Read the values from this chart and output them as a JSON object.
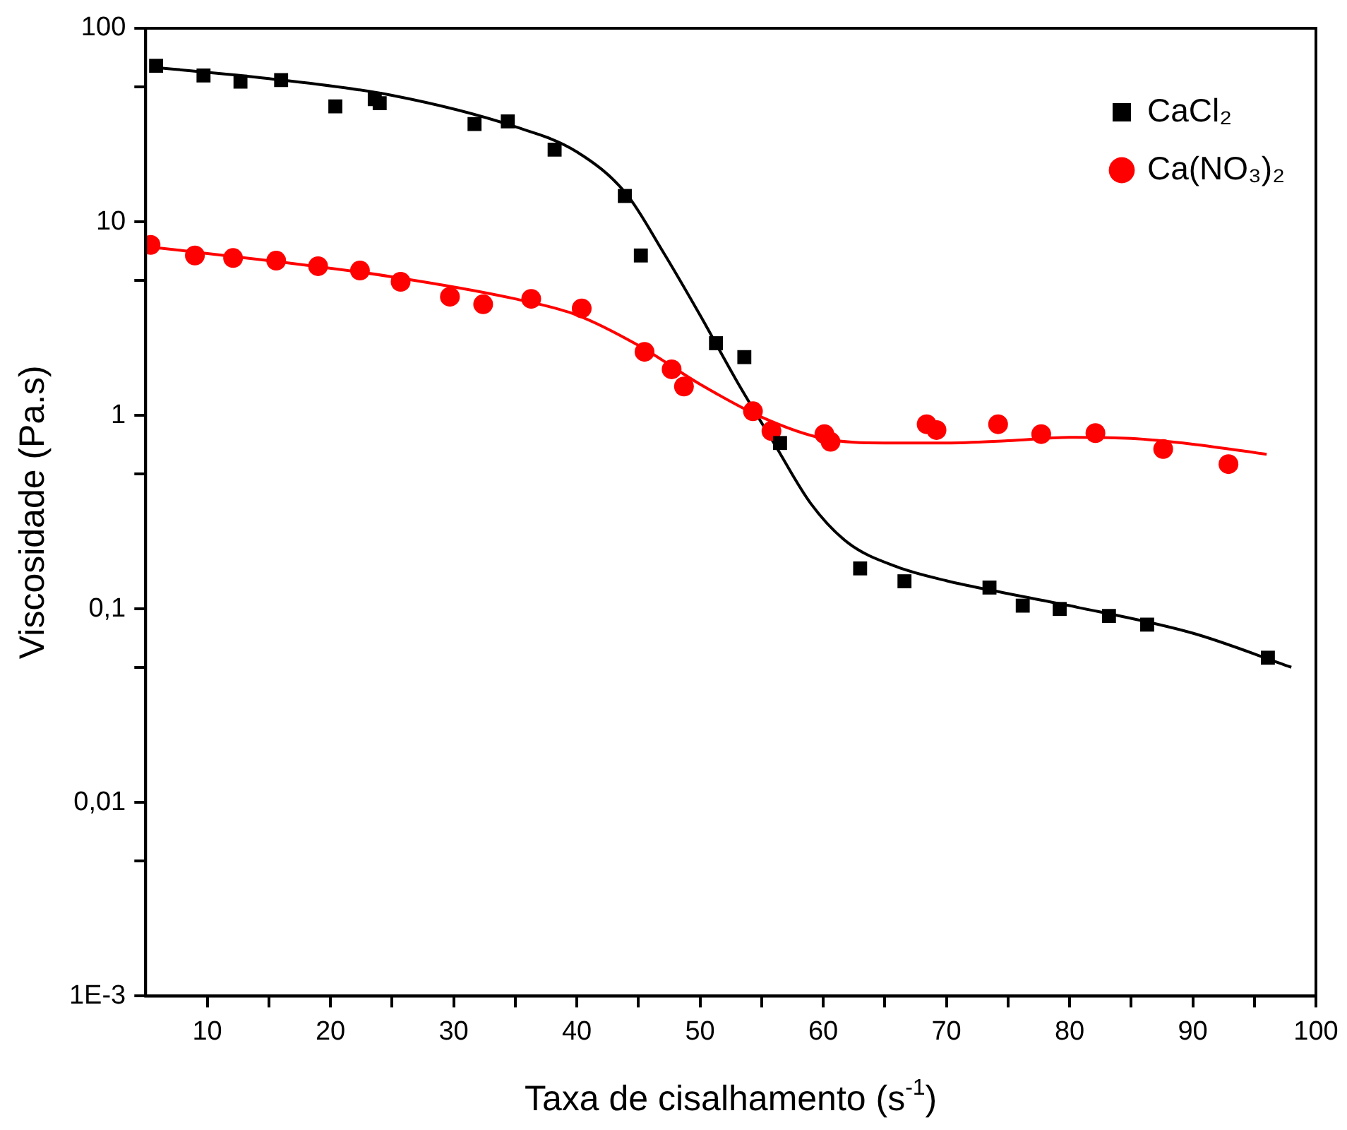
{
  "chart_data": {
    "type": "scatter",
    "xlabel": "Taxa de cisalhamento (s$^{-1}$)",
    "ylabel": "Viscosidade (Pa.s)",
    "xlim": [
      5,
      100
    ],
    "xticks": [
      10,
      {
        "value": 15,
        "label": null
      },
      20,
      {
        "value": 25,
        "label": null
      },
      30,
      {
        "value": 35,
        "label": null
      },
      40,
      {
        "value": 45,
        "label": null
      },
      50,
      {
        "value": 55,
        "label": null
      },
      60,
      {
        "value": 65,
        "label": null
      },
      70,
      {
        "value": 75,
        "label": null
      },
      80,
      {
        "value": 85,
        "label": null
      },
      90,
      {
        "value": 95,
        "label": null
      },
      100
    ],
    "ylim": [
      0.001,
      100
    ],
    "yticks": [
      {
        "value": 0.001,
        "label": "1E-3"
      },
      {
        "value": 0.005,
        "label": null
      },
      {
        "value": 0.01,
        "label": "0,01"
      },
      {
        "value": 0.05,
        "label": null
      },
      {
        "value": 0.1,
        "label": "0,1"
      },
      {
        "value": 0.5,
        "label": null
      },
      1,
      {
        "value": 5,
        "label": null
      },
      10,
      {
        "value": 50,
        "label": null
      },
      100
    ],
    "log": "y",
    "grid": false,
    "legend": "top right",
    "series": [
      {
        "name": "CaCl₂",
        "type": "scatter",
        "marker": "square",
        "color": "#000000",
        "x": [
          5.85,
          9.7,
          12.7,
          16.0,
          20.4,
          23.6,
          24.0,
          31.7,
          34.4,
          38.2,
          43.9,
          45.2,
          51.3,
          53.6,
          56.5,
          63.0,
          66.6,
          73.5,
          76.2,
          79.2,
          83.2,
          86.3,
          96.1
        ],
        "values": [
          64,
          57,
          53,
          54,
          39.5,
          43,
          41,
          32,
          33,
          23.6,
          13.6,
          6.7,
          2.36,
          2.0,
          0.72,
          0.162,
          0.139,
          0.129,
          0.104,
          0.1,
          0.092,
          0.083,
          0.056
        ]
      },
      {
        "name": "Ca(NO₃)₂",
        "type": "scatter",
        "marker": "circle",
        "color": "#ff0000",
        "x": [
          5.4,
          9.0,
          12.1,
          15.6,
          19.0,
          22.4,
          25.7,
          29.7,
          32.4,
          36.3,
          40.4,
          45.5,
          47.7,
          48.7,
          54.3,
          55.8,
          60.1,
          60.6,
          68.4,
          69.2,
          74.2,
          77.7,
          82.1,
          87.6,
          92.9
        ],
        "values": [
          7.6,
          6.7,
          6.5,
          6.3,
          5.9,
          5.6,
          4.9,
          4.1,
          3.75,
          4.0,
          3.57,
          2.13,
          1.73,
          1.41,
          1.05,
          0.83,
          0.8,
          0.73,
          0.9,
          0.84,
          0.9,
          0.8,
          0.81,
          0.67,
          0.56
        ]
      },
      {
        "type": "line",
        "color": "#000000",
        "x": [
          5.5,
          15,
          25,
          35,
          40,
          44,
          47,
          50,
          53,
          56,
          59,
          62,
          66,
          70,
          75,
          80,
          90,
          98
        ],
        "values": [
          63,
          55,
          45,
          31,
          23,
          14,
          7,
          3.3,
          1.5,
          0.72,
          0.35,
          0.22,
          0.165,
          0.14,
          0.12,
          0.104,
          0.075,
          0.05
        ]
      },
      {
        "type": "line",
        "color": "#ff0000",
        "x": [
          5.5,
          15,
          25,
          35,
          40,
          45,
          50,
          55,
          60,
          65,
          70,
          75,
          80,
          85,
          90,
          96
        ],
        "values": [
          7.4,
          6.3,
          5.2,
          4.0,
          3.3,
          2.3,
          1.45,
          0.98,
          0.76,
          0.72,
          0.72,
          0.74,
          0.77,
          0.76,
          0.71,
          0.63
        ]
      }
    ]
  }
}
